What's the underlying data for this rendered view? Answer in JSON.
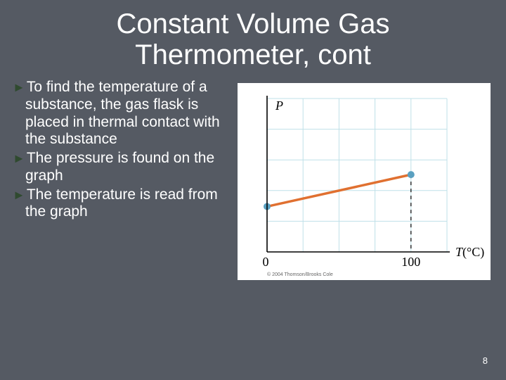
{
  "title_line1": "Constant Volume Gas",
  "title_line2": "Thermometer, cont",
  "bullets": [
    "To find the temperature of a substance, the gas flask is placed in thermal contact with the substance",
    "The pressure is found on the graph",
    "The temperature is read from the graph"
  ],
  "chart": {
    "type": "line",
    "background_color": "#ffffff",
    "grid_color": "#bfe0e8",
    "axis_color": "#000000",
    "line_color": "#e07030",
    "line_width": 3.5,
    "marker_color": "#5aa0c0",
    "marker_radius": 5,
    "dashed_color": "#000000",
    "xlabel_italic": "T",
    "xlabel_unit": "(°C)",
    "ylabel": "P",
    "xlim": [
      0,
      125
    ],
    "ylim": [
      0,
      125
    ],
    "xtick_labels": [
      "0",
      "100"
    ],
    "xtick_positions": [
      0,
      100
    ],
    "grid_step": 25,
    "data": {
      "x": [
        0,
        100
      ],
      "y": [
        37,
        63
      ]
    },
    "dashed_drop_x": 100,
    "label_fontsize": 18,
    "label_color": "#000000",
    "copyright_text": "© 2004 Thomson/Brooks Cole",
    "copyright_fontsize": 7
  },
  "page_number": "8",
  "arrow_char": "►"
}
